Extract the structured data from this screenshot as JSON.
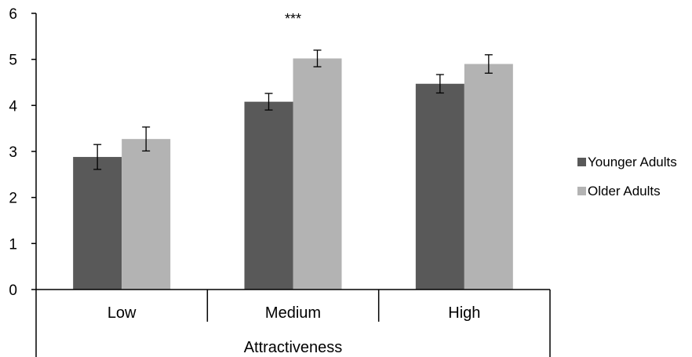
{
  "chart_data": {
    "type": "bar",
    "categories": [
      "Low",
      "Medium",
      "High"
    ],
    "series": [
      {
        "name": "Younger Adults",
        "values": [
          2.88,
          4.08,
          4.47
        ],
        "errors": [
          0.27,
          0.18,
          0.2
        ],
        "color": "#595959"
      },
      {
        "name": "Older Adults",
        "values": [
          3.27,
          5.02,
          4.9
        ],
        "errors": [
          0.26,
          0.18,
          0.2
        ],
        "color": "#b3b3b3"
      }
    ],
    "xlabel": "Attractiveness",
    "ylabel": "",
    "ylim": [
      0,
      6
    ],
    "yticks": [
      "0",
      "1",
      "2",
      "3",
      "4",
      "5",
      "6"
    ],
    "grid": false,
    "legend_position": "right",
    "annotations": [
      {
        "category": "Medium",
        "text": "***"
      }
    ]
  }
}
